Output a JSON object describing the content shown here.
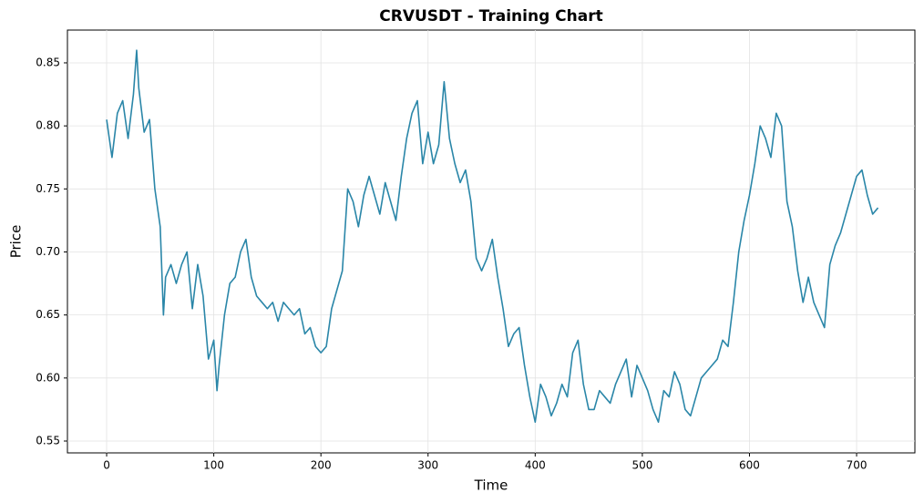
{
  "chart_data": {
    "type": "line",
    "title": "CRVUSDT - Training Chart",
    "x_label": "Time",
    "y_label": "Price",
    "xlim": [
      -36.6,
      754.4
    ],
    "ylim": [
      0.5406,
      0.876
    ],
    "xticks": [
      0,
      100,
      200,
      300,
      400,
      500,
      600,
      700
    ],
    "yticks": [
      0.55,
      {
        "value": 0.6,
        "label": "0.60"
      },
      0.65,
      {
        "value": 0.7,
        "label": "0.70"
      },
      0.75,
      {
        "value": 0.8,
        "label": "0.80"
      },
      0.85
    ],
    "grid": true,
    "x": [
      0,
      5,
      10,
      15,
      20,
      25,
      28,
      30,
      35,
      40,
      45,
      50,
      53,
      55,
      60,
      65,
      70,
      75,
      80,
      85,
      90,
      95,
      100,
      103,
      105,
      110,
      115,
      120,
      125,
      130,
      135,
      140,
      145,
      150,
      155,
      160,
      165,
      170,
      175,
      180,
      185,
      190,
      195,
      200,
      205,
      210,
      215,
      220,
      225,
      230,
      235,
      240,
      245,
      250,
      255,
      260,
      265,
      270,
      275,
      280,
      285,
      290,
      295,
      300,
      305,
      310,
      315,
      320,
      325,
      330,
      335,
      340,
      345,
      350,
      355,
      360,
      365,
      370,
      375,
      380,
      385,
      390,
      395,
      400,
      405,
      410,
      415,
      420,
      425,
      430,
      435,
      440,
      445,
      450,
      455,
      460,
      465,
      470,
      475,
      480,
      485,
      490,
      495,
      500,
      505,
      510,
      515,
      520,
      525,
      530,
      535,
      540,
      545,
      550,
      555,
      560,
      565,
      570,
      575,
      580,
      585,
      590,
      595,
      600,
      605,
      610,
      615,
      620,
      625,
      630,
      635,
      640,
      645,
      650,
      655,
      660,
      665,
      670,
      675,
      680,
      685,
      690,
      695,
      700,
      705,
      710,
      715,
      720
    ],
    "series": [
      {
        "name": "CRVUSDT",
        "color": "#2a86a8",
        "values": [
          0.805,
          0.775,
          0.81,
          0.82,
          0.79,
          0.825,
          0.86,
          0.83,
          0.795,
          0.805,
          0.75,
          0.72,
          0.65,
          0.68,
          0.69,
          0.675,
          0.69,
          0.7,
          0.655,
          0.69,
          0.665,
          0.615,
          0.63,
          0.59,
          0.61,
          0.65,
          0.675,
          0.68,
          0.7,
          0.71,
          0.68,
          0.665,
          0.66,
          0.655,
          0.66,
          0.645,
          0.66,
          0.655,
          0.65,
          0.655,
          0.635,
          0.64,
          0.625,
          0.62,
          0.625,
          0.655,
          0.67,
          0.685,
          0.75,
          0.74,
          0.72,
          0.745,
          0.76,
          0.745,
          0.73,
          0.755,
          0.74,
          0.725,
          0.76,
          0.79,
          0.81,
          0.82,
          0.77,
          0.795,
          0.77,
          0.785,
          0.835,
          0.79,
          0.77,
          0.755,
          0.765,
          0.74,
          0.695,
          0.685,
          0.695,
          0.71,
          0.68,
          0.655,
          0.625,
          0.635,
          0.64,
          0.61,
          0.585,
          0.565,
          0.595,
          0.585,
          0.57,
          0.58,
          0.595,
          0.585,
          0.62,
          0.63,
          0.595,
          0.575,
          0.575,
          0.59,
          0.585,
          0.58,
          0.595,
          0.605,
          0.615,
          0.585,
          0.61,
          0.6,
          0.59,
          0.575,
          0.565,
          0.59,
          0.585,
          0.605,
          0.595,
          0.575,
          0.57,
          0.585,
          0.6,
          0.605,
          0.61,
          0.615,
          0.63,
          0.625,
          0.66,
          0.7,
          0.725,
          0.745,
          0.77,
          0.8,
          0.79,
          0.775,
          0.81,
          0.8,
          0.74,
          0.72,
          0.685,
          0.66,
          0.68,
          0.66,
          0.65,
          0.64,
          0.69,
          0.705,
          0.715,
          0.73,
          0.745,
          0.76,
          0.765,
          0.745,
          0.73,
          0.735
        ]
      }
    ]
  }
}
